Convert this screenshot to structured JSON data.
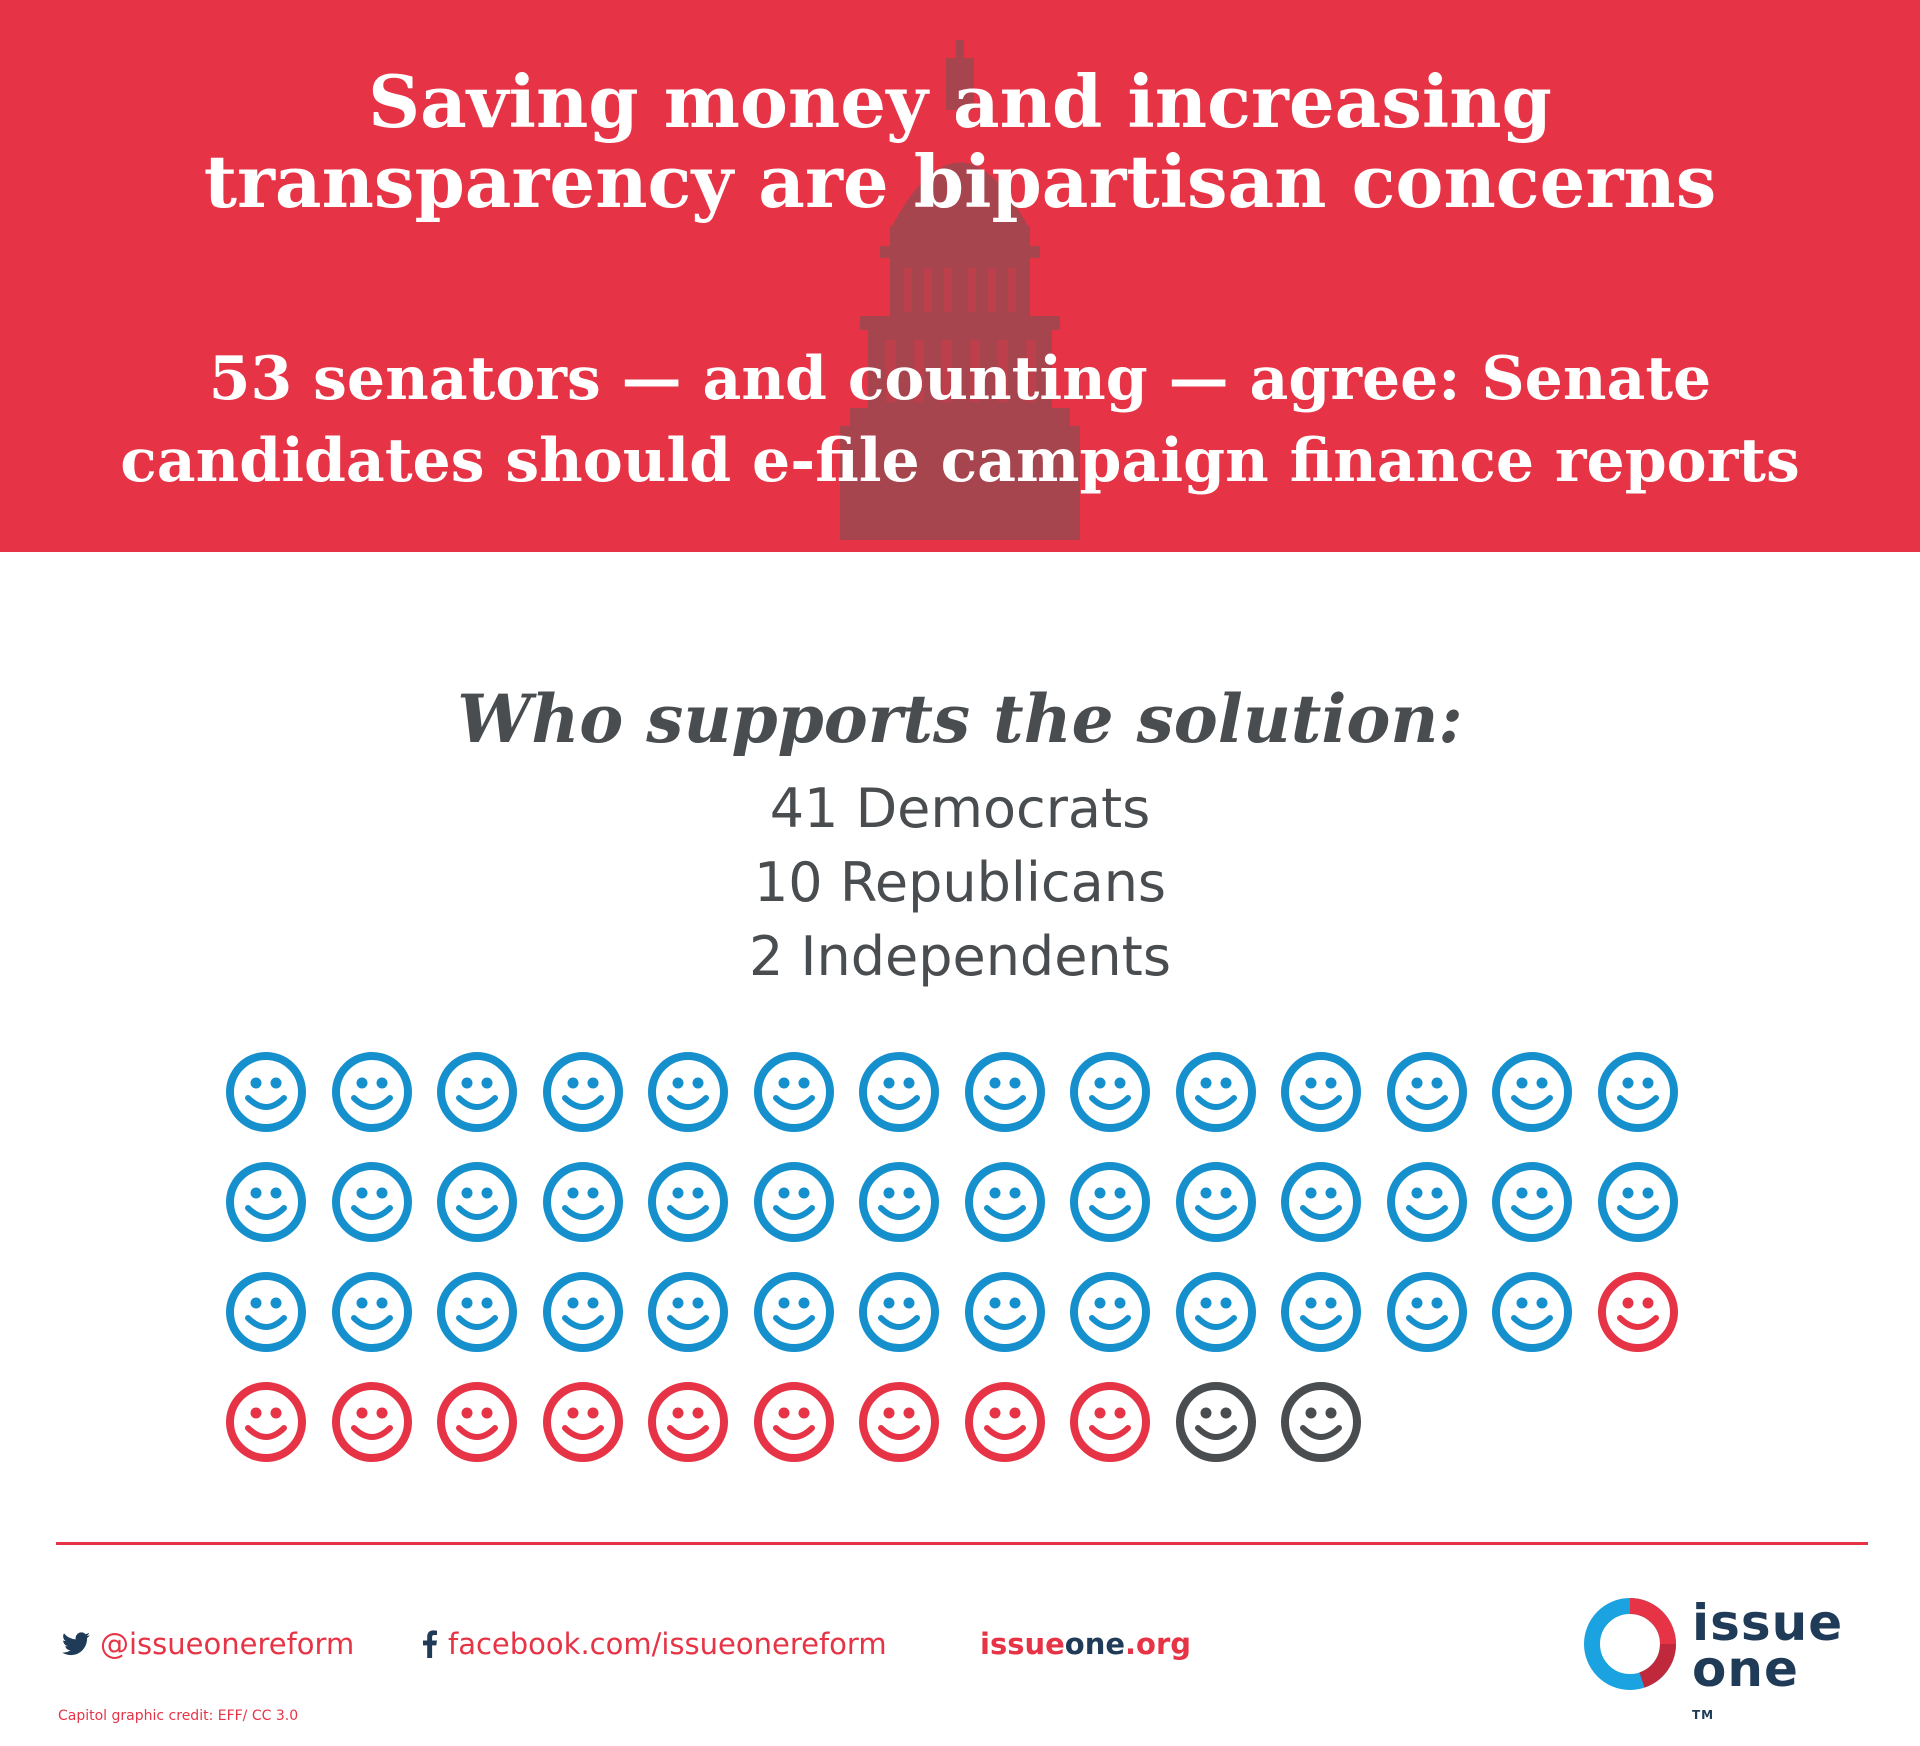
{
  "colors": {
    "red": "#e63446",
    "navy": "#1f3b57",
    "blue": "#1590cd",
    "gray": "#4a4d50",
    "capitol": "#a0474f"
  },
  "header": {
    "title_line1": "Saving money and increasing",
    "title_line2": "transparency are bipartisan concerns",
    "subtitle_line1": "53 senators — and counting — agree: Senate",
    "subtitle_line2": "candidates should e-file campaign finance reports"
  },
  "supporters": {
    "heading": "Who supports the solution:",
    "lines": [
      "41 Democrats",
      "10 Republicans",
      "2 Independents"
    ],
    "icon_grid": {
      "icon": "smiley-face-icon",
      "columns": 14,
      "groups": [
        {
          "count": 41,
          "color": "#1590cd"
        },
        {
          "count": 10,
          "color": "#e63446"
        },
        {
          "count": 2,
          "color": "#4a4d50"
        }
      ]
    }
  },
  "footer": {
    "twitter_icon": "twitter-bird-icon",
    "twitter": "@issueonereform",
    "facebook_icon": "facebook-icon",
    "facebook": "facebook.com/issueonereform",
    "website_part1": "issue",
    "website_part2": "one",
    "website_part3": ".org",
    "credit": "Capitol graphic credit: EFF/ CC 3.0"
  },
  "logo": {
    "line1": "issue",
    "line2": "one",
    "tm": "TM"
  }
}
